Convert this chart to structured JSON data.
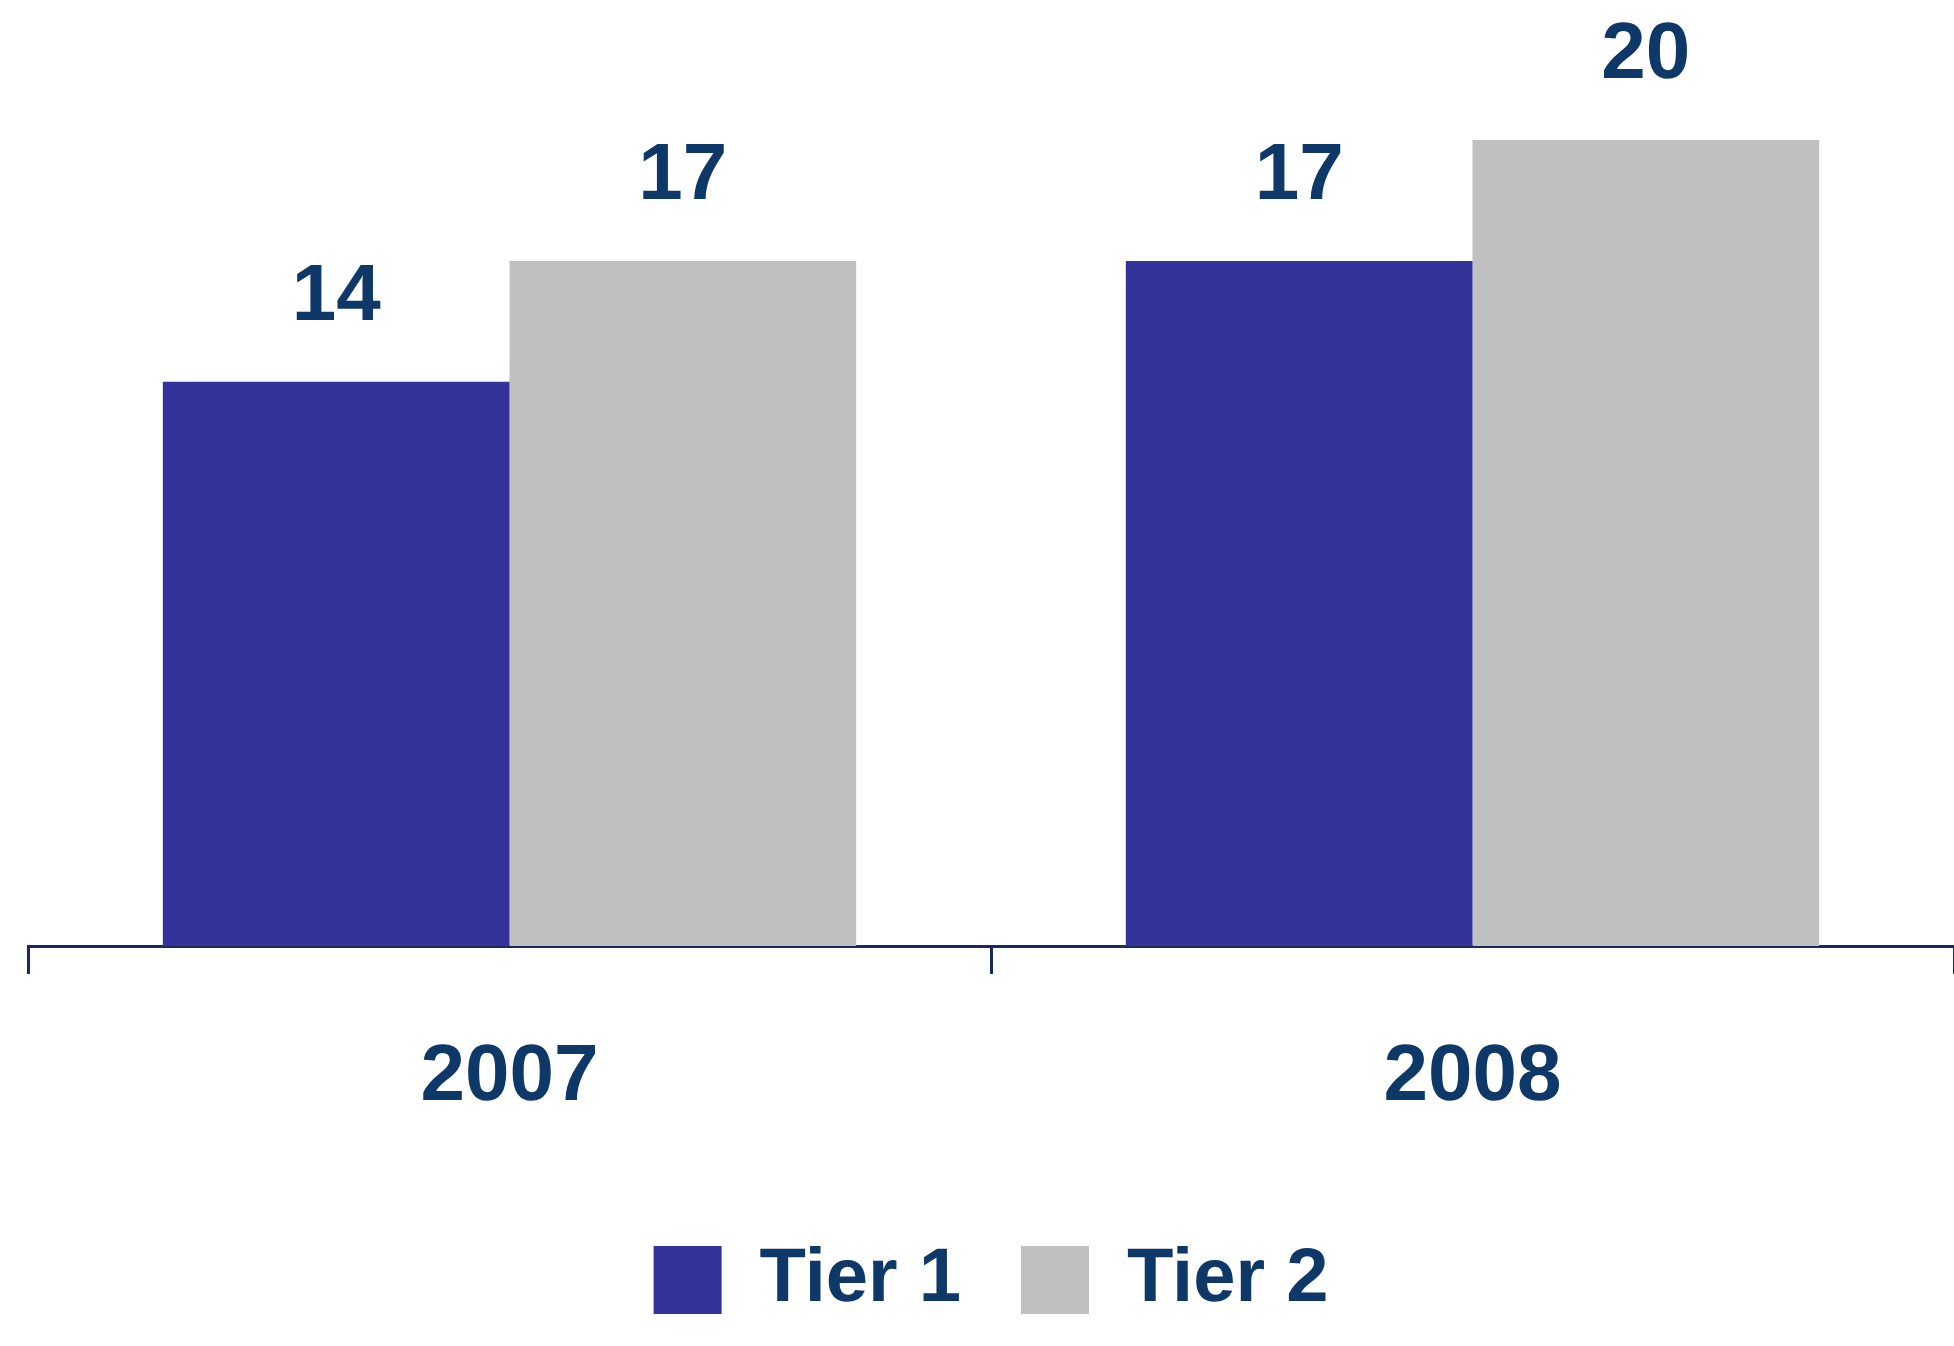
{
  "chart_data": {
    "type": "bar",
    "categories": [
      "2007",
      "2008"
    ],
    "series": [
      {
        "name": "Tier 1",
        "color": "#333399",
        "values": [
          14,
          17
        ]
      },
      {
        "name": "Tier 2",
        "color": "#c0c0c0",
        "values": [
          17,
          20
        ]
      }
    ],
    "data_labels": true,
    "legend": "bottom",
    "grid": false
  }
}
